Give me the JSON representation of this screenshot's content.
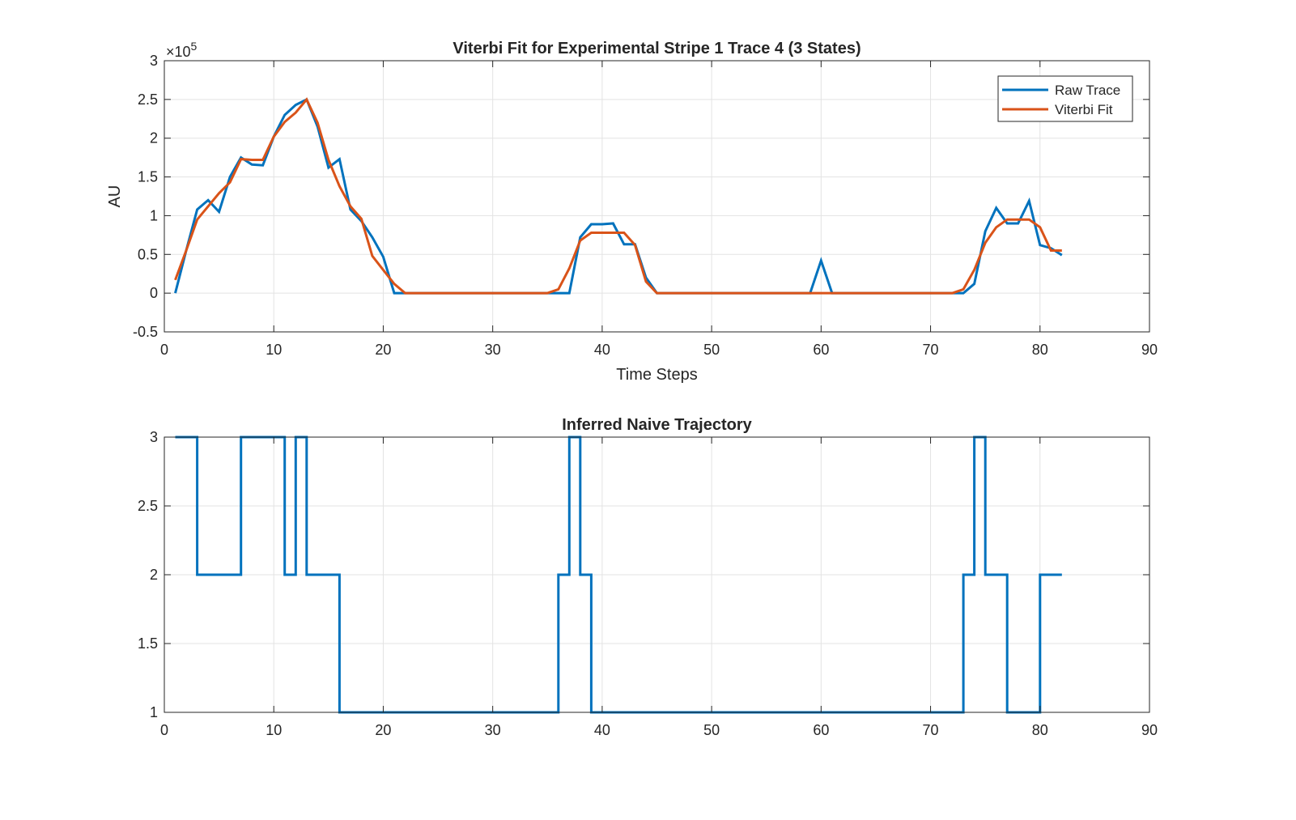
{
  "chart_data": [
    {
      "type": "line",
      "title": "Viterbi Fit for Experimental Stripe 1 Trace 4 (3 States)",
      "xlabel": "Time Steps",
      "ylabel": "AU",
      "y_exponent_label": "×10",
      "y_exponent": "5",
      "xlim": [
        0,
        90
      ],
      "ylim": [
        -0.5,
        3
      ],
      "y_scale_note": "y values in units of 1e5",
      "xticks": [
        "0",
        "10",
        "20",
        "30",
        "40",
        "50",
        "60",
        "70",
        "80",
        "90"
      ],
      "yticks": [
        "-0.5",
        "0",
        "0.5",
        "1",
        "1.5",
        "2",
        "2.5",
        "3"
      ],
      "grid": true,
      "legend_position": "top-right",
      "series": [
        {
          "name": "Raw Trace",
          "color": "#0072BD",
          "x": [
            1,
            2,
            3,
            4,
            5,
            6,
            7,
            8,
            9,
            10,
            11,
            12,
            13,
            14,
            15,
            16,
            17,
            18,
            19,
            20,
            21,
            22,
            23,
            24,
            25,
            26,
            27,
            28,
            29,
            30,
            31,
            32,
            33,
            34,
            35,
            36,
            37,
            38,
            39,
            40,
            41,
            42,
            43,
            44,
            45,
            46,
            47,
            48,
            49,
            50,
            51,
            52,
            53,
            54,
            55,
            56,
            57,
            58,
            59,
            60,
            61,
            62,
            63,
            64,
            65,
            66,
            67,
            68,
            69,
            70,
            71,
            72,
            73,
            74,
            75,
            76,
            77,
            78,
            79,
            80,
            81,
            82
          ],
          "values": [
            0,
            0.55,
            1.08,
            1.2,
            1.05,
            1.5,
            1.75,
            1.66,
            1.65,
            2.02,
            2.3,
            2.43,
            2.5,
            2.15,
            1.62,
            1.73,
            1.08,
            0.93,
            0.72,
            0.47,
            0,
            0,
            0,
            0,
            0,
            0,
            0,
            0,
            0,
            0,
            0,
            0,
            0,
            0,
            0,
            0,
            0,
            0.72,
            0.89,
            0.89,
            0.9,
            0.63,
            0.63,
            0.2,
            0,
            0,
            0,
            0,
            0,
            0,
            0,
            0,
            0,
            0,
            0,
            0,
            0,
            0,
            0,
            0.42,
            0,
            0,
            0,
            0,
            0,
            0,
            0,
            0,
            0,
            0,
            0,
            0,
            0,
            0.12,
            0.8,
            1.1,
            0.9,
            0.9,
            1.19,
            0.62,
            0.58,
            0.49
          ]
        },
        {
          "name": "Viterbi Fit",
          "color": "#D95319",
          "x": [
            1,
            2,
            3,
            4,
            5,
            6,
            7,
            8,
            9,
            10,
            11,
            12,
            13,
            14,
            15,
            16,
            17,
            18,
            19,
            20,
            21,
            22,
            23,
            24,
            25,
            26,
            27,
            28,
            29,
            30,
            31,
            32,
            33,
            34,
            35,
            36,
            37,
            38,
            39,
            40,
            41,
            42,
            43,
            44,
            45,
            46,
            47,
            48,
            49,
            50,
            51,
            52,
            53,
            54,
            55,
            56,
            57,
            58,
            59,
            60,
            61,
            62,
            63,
            64,
            65,
            66,
            67,
            68,
            69,
            70,
            71,
            72,
            73,
            74,
            75,
            76,
            77,
            78,
            79,
            80,
            81,
            82
          ],
          "values": [
            0.17,
            0.55,
            0.95,
            1.12,
            1.29,
            1.43,
            1.73,
            1.72,
            1.72,
            2.02,
            2.21,
            2.33,
            2.5,
            2.2,
            1.72,
            1.38,
            1.12,
            0.96,
            0.48,
            0.3,
            0.12,
            0,
            0,
            0,
            0,
            0,
            0,
            0,
            0,
            0,
            0,
            0,
            0,
            0,
            0,
            0.05,
            0.32,
            0.68,
            0.78,
            0.78,
            0.78,
            0.78,
            0.62,
            0.15,
            0,
            0,
            0,
            0,
            0,
            0,
            0,
            0,
            0,
            0,
            0,
            0,
            0,
            0,
            0,
            0,
            0,
            0,
            0,
            0,
            0,
            0,
            0,
            0,
            0,
            0,
            0,
            0,
            0.05,
            0.3,
            0.65,
            0.85,
            0.95,
            0.95,
            0.95,
            0.85,
            0.55,
            0.55
          ]
        }
      ]
    },
    {
      "type": "line",
      "step": true,
      "title": "Inferred Naive Trajectory",
      "xlabel": "",
      "ylabel": "",
      "xlim": [
        0,
        90
      ],
      "ylim": [
        1,
        3
      ],
      "xticks": [
        "0",
        "10",
        "20",
        "30",
        "40",
        "50",
        "60",
        "70",
        "80",
        "90"
      ],
      "yticks": [
        "1",
        "1.5",
        "2",
        "2.5",
        "3"
      ],
      "grid": true,
      "series": [
        {
          "color": "#0072BD",
          "x": [
            1,
            2,
            3,
            4,
            5,
            6,
            7,
            8,
            9,
            10,
            11,
            12,
            13,
            14,
            15,
            16,
            17,
            18,
            19,
            20,
            21,
            22,
            23,
            24,
            25,
            26,
            27,
            28,
            29,
            30,
            31,
            32,
            33,
            34,
            35,
            36,
            37,
            38,
            39,
            40,
            41,
            42,
            43,
            44,
            45,
            46,
            47,
            48,
            49,
            50,
            51,
            52,
            53,
            54,
            55,
            56,
            57,
            58,
            59,
            60,
            61,
            62,
            63,
            64,
            65,
            66,
            67,
            68,
            69,
            70,
            71,
            72,
            73,
            74,
            75,
            76,
            77,
            78,
            79,
            80,
            81,
            82
          ],
          "values": [
            3,
            3,
            2,
            2,
            2,
            2,
            3,
            3,
            3,
            3,
            2,
            3,
            2,
            2,
            2,
            1,
            1,
            1,
            1,
            1,
            1,
            1,
            1,
            1,
            1,
            1,
            1,
            1,
            1,
            1,
            1,
            1,
            1,
            1,
            1,
            2,
            3,
            2,
            1,
            1,
            1,
            1,
            1,
            1,
            1,
            1,
            1,
            1,
            1,
            1,
            1,
            1,
            1,
            1,
            1,
            1,
            1,
            1,
            1,
            1,
            1,
            1,
            1,
            1,
            1,
            1,
            1,
            1,
            1,
            1,
            1,
            1,
            2,
            3,
            2,
            2,
            1,
            1,
            1,
            2,
            2,
            2
          ]
        }
      ]
    }
  ]
}
